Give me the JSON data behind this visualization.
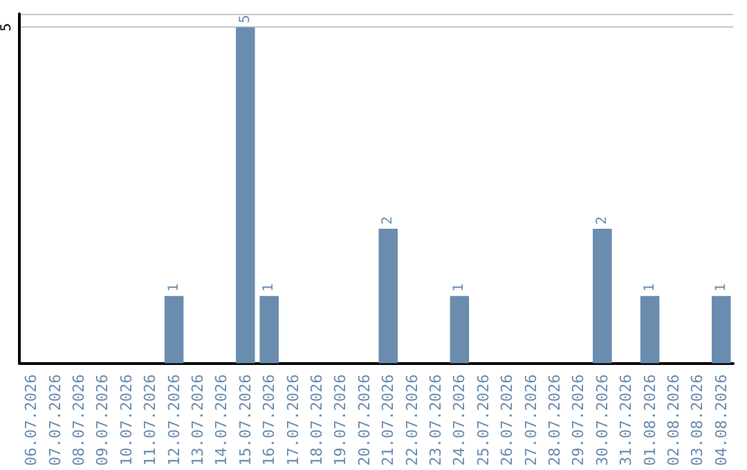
{
  "chart_data": {
    "type": "bar",
    "categories": [
      "06.07.2026",
      "07.07.2026",
      "08.07.2026",
      "09.07.2026",
      "10.07.2026",
      "11.07.2026",
      "12.07.2026",
      "13.07.2026",
      "14.07.2026",
      "15.07.2026",
      "16.07.2026",
      "17.07.2026",
      "18.07.2026",
      "19.07.2026",
      "20.07.2026",
      "21.07.2026",
      "22.07.2026",
      "23.07.2026",
      "24.07.2026",
      "25.07.2026",
      "26.07.2026",
      "27.07.2026",
      "28.07.2026",
      "29.07.2026",
      "30.07.2026",
      "31.07.2026",
      "01.08.2026",
      "02.08.2026",
      "03.08.2026",
      "04.08.2026"
    ],
    "values": [
      0,
      0,
      0,
      0,
      0,
      0,
      1,
      0,
      0,
      5,
      1,
      0,
      0,
      0,
      0,
      2,
      0,
      0,
      1,
      0,
      0,
      0,
      0,
      0,
      2,
      0,
      1,
      0,
      0,
      1
    ],
    "value_labels": [
      null,
      null,
      null,
      null,
      null,
      null,
      "1",
      null,
      null,
      "5",
      "1",
      null,
      null,
      null,
      null,
      "2",
      null,
      null,
      "1",
      null,
      null,
      null,
      null,
      null,
      "2",
      null,
      "1",
      null,
      null,
      "1"
    ],
    "color": "#6a8caf",
    "ylim": [
      0,
      5.2
    ],
    "yticks": [
      5
    ],
    "grid": "y"
  }
}
